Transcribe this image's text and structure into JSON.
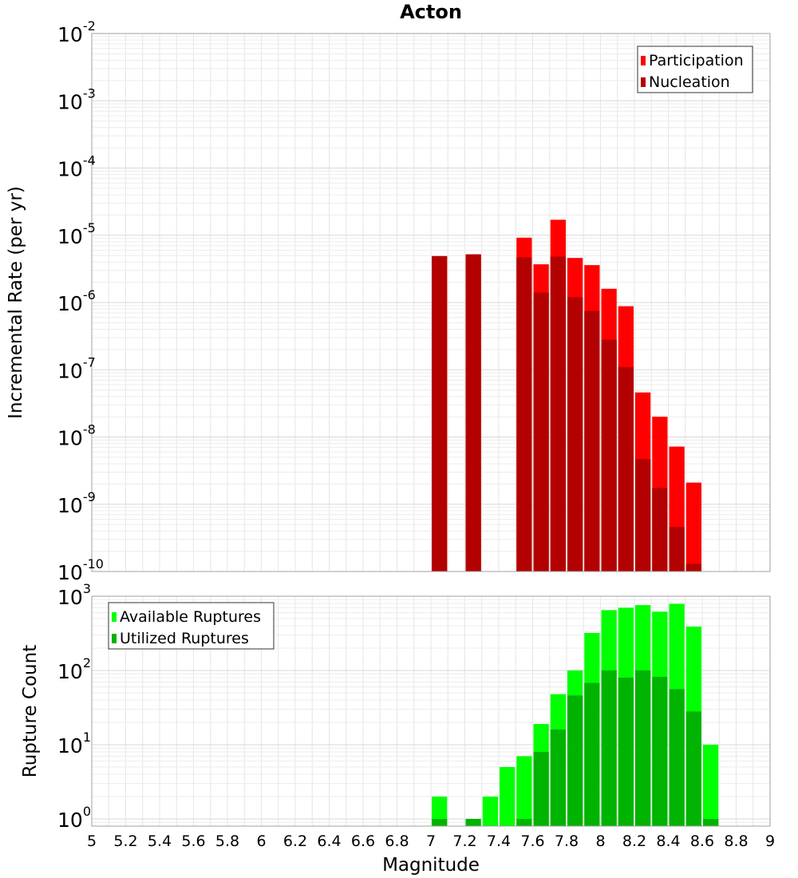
{
  "chart_data": [
    {
      "type": "bar",
      "title": "Acton",
      "xlabel": "",
      "ylabel": "Incremental Rate (per yr)",
      "y_scale": "log",
      "ylim": [
        1e-10,
        0.01
      ],
      "xlim": [
        5,
        9
      ],
      "grid": true,
      "legend_position": "top-right",
      "y_tick_labels": [
        {
          "base": "10",
          "exp": "-2"
        },
        {
          "base": "10",
          "exp": "-3"
        },
        {
          "base": "10",
          "exp": "-4"
        },
        {
          "base": "10",
          "exp": "-5"
        },
        {
          "base": "10",
          "exp": "-6"
        },
        {
          "base": "10",
          "exp": "-7"
        },
        {
          "base": "10",
          "exp": "-8"
        },
        {
          "base": "10",
          "exp": "-9"
        },
        {
          "base": "10",
          "exp": "-10"
        }
      ],
      "x": [
        7.05,
        7.25,
        7.55,
        7.65,
        7.75,
        7.85,
        7.95,
        8.05,
        8.15,
        8.25,
        8.35,
        8.45,
        8.55
      ],
      "series": [
        {
          "name": "Participation",
          "color": "#ff0000",
          "values": [
            4.9e-06,
            5.2e-06,
            9.2e-06,
            3.7e-06,
            1.7e-05,
            4.6e-06,
            3.6e-06,
            1.6e-06,
            8.8e-07,
            4.6e-08,
            2e-08,
            7.2e-09,
            2.1e-09
          ]
        },
        {
          "name": "Nucleation",
          "color": "#b30000",
          "values": [
            4.9e-06,
            5.2e-06,
            4.7e-06,
            1.4e-06,
            4.8e-06,
            1.2e-06,
            7.5e-07,
            2.8e-07,
            1.1e-07,
            4.7e-09,
            1.75e-09,
            4.6e-10,
            1.3e-10
          ]
        }
      ]
    },
    {
      "type": "bar",
      "title": "",
      "xlabel": "Magnitude",
      "ylabel": "Rupture Count",
      "y_scale": "log",
      "ylim": [
        0.8,
        1000
      ],
      "xlim": [
        5,
        9
      ],
      "grid": true,
      "legend_position": "top-left",
      "y_tick_labels": [
        {
          "base": "10",
          "exp": "3"
        },
        {
          "base": "10",
          "exp": "2"
        },
        {
          "base": "10",
          "exp": "1"
        },
        {
          "base": "10",
          "exp": "0"
        }
      ],
      "x_tick_labels": [
        "5",
        "5.2",
        "5.4",
        "5.6",
        "5.8",
        "6",
        "6.2",
        "6.4",
        "6.6",
        "6.8",
        "7",
        "7.2",
        "7.4",
        "7.6",
        "7.8",
        "8",
        "8.2",
        "8.4",
        "8.6",
        "8.8",
        "9"
      ],
      "x": [
        7.05,
        7.25,
        7.35,
        7.45,
        7.55,
        7.65,
        7.75,
        7.85,
        7.95,
        8.05,
        8.15,
        8.25,
        8.35,
        8.45,
        8.55,
        8.65
      ],
      "series": [
        {
          "name": "Available Ruptures",
          "color": "#00ff00",
          "values": [
            2,
            null,
            2,
            5,
            7,
            19,
            48,
            100,
            320,
            650,
            700,
            760,
            620,
            790,
            390,
            10
          ]
        },
        {
          "name": "Utilized Ruptures",
          "color": "#00b300",
          "values": [
            1,
            1,
            null,
            null,
            1,
            8,
            16,
            46,
            68,
            100,
            80,
            100,
            82,
            56,
            28,
            1
          ]
        }
      ]
    }
  ]
}
